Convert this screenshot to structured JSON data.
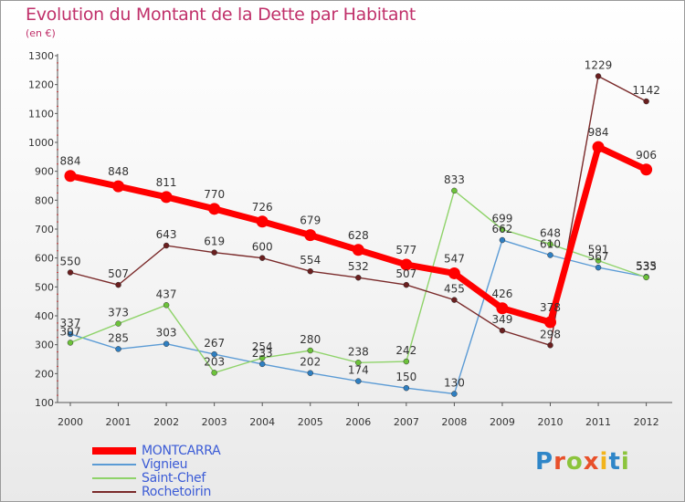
{
  "title": "Evolution du Montant de la Dette par Habitant",
  "unit_label": "(en €)",
  "logo": {
    "text": "Proxiti",
    "letter_colors": [
      "#2f86c8",
      "#e8502a",
      "#8cc43c",
      "#e8502a",
      "#f2b41c",
      "#2f86c8",
      "#8cc43c"
    ]
  },
  "chart_data": {
    "type": "line",
    "title": "Evolution du Montant de la Dette par Habitant",
    "ylabel": "(en €)",
    "xlabel": "",
    "categories": [
      "2000",
      "2001",
      "2002",
      "2003",
      "2004",
      "2005",
      "2006",
      "2007",
      "2008",
      "2009",
      "2010",
      "2011",
      "2012"
    ],
    "ylim": [
      100,
      1300
    ],
    "yticks": [
      "100",
      "200",
      "300",
      "400",
      "500",
      "600",
      "700",
      "800",
      "900",
      "1000",
      "1100",
      "1200",
      "1300"
    ],
    "grid": false,
    "legend_position": "bottom-left",
    "series": [
      {
        "name": "MONTCARRA",
        "color": "#ff0000",
        "emphasis": true,
        "values": [
          884,
          848,
          811,
          770,
          726,
          679,
          628,
          577,
          547,
          426,
          378,
          984,
          906
        ],
        "labels": [
          "884",
          "848",
          "811",
          "770",
          "726",
          "679",
          "628",
          "577",
          "547",
          "426",
          "378",
          "984",
          "906"
        ]
      },
      {
        "name": "Vignieu",
        "color": "#5b9bd5",
        "point_color": "#2f7fc1",
        "values": [
          337,
          285,
          303,
          267,
          233,
          202,
          174,
          150,
          130,
          662,
          610,
          567,
          535
        ],
        "labels": [
          "337",
          "285",
          "303",
          "267",
          "233",
          "202",
          "174",
          "150",
          "130",
          "662",
          "610",
          "567",
          "535"
        ]
      },
      {
        "name": "Saint-Chef",
        "color": "#8fd36a",
        "point_color": "#6cc23a",
        "values": [
          307,
          373,
          437,
          203,
          254,
          280,
          238,
          242,
          833,
          699,
          648,
          591,
          533
        ],
        "labels": [
          "307",
          "373",
          "437",
          "203",
          "254",
          "280",
          "238",
          "242",
          "833",
          "699",
          "648",
          "591",
          "533"
        ]
      },
      {
        "name": "Rochetoirin",
        "color": "#7a2a2a",
        "point_color": "#6a1f1f",
        "values": [
          550,
          507,
          643,
          619,
          600,
          554,
          532,
          507,
          455,
          349,
          298,
          1229,
          1142
        ],
        "labels": [
          "550",
          "507",
          "643",
          "619",
          "600",
          "554",
          "532",
          "507",
          "455",
          "349",
          "298",
          "1229",
          "1142"
        ]
      }
    ]
  }
}
